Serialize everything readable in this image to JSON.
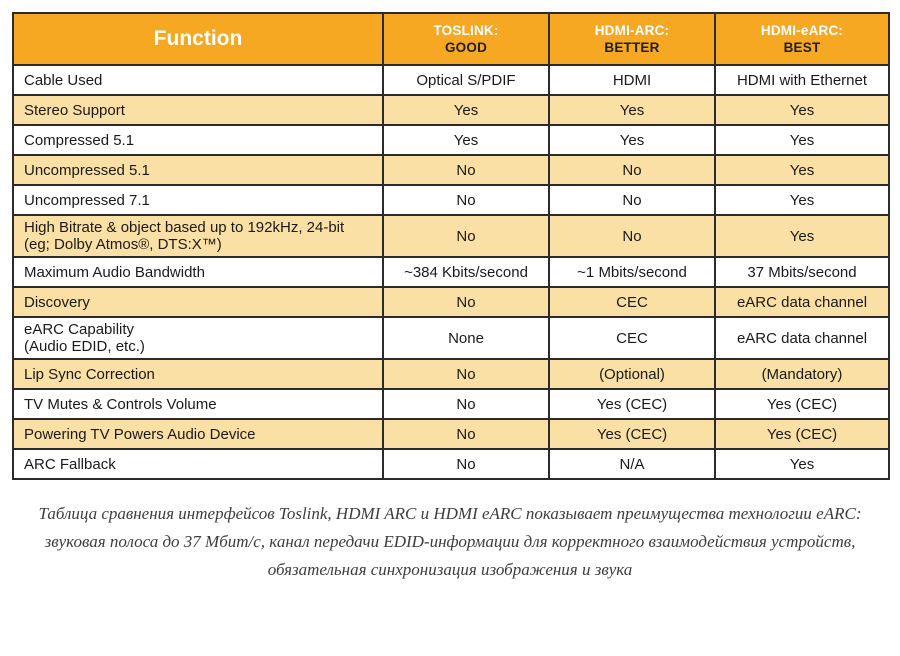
{
  "table": {
    "header": {
      "function_label": "Function",
      "columns": [
        {
          "title": "TOSLINK:",
          "rating": "GOOD"
        },
        {
          "title": "HDMI-ARC:",
          "rating": "BETTER"
        },
        {
          "title": "HDMI-eARC:",
          "rating": "BEST"
        }
      ]
    },
    "rows": [
      {
        "function": "Cable Used",
        "toslink": "Optical S/PDIF",
        "hdmi_arc": "HDMI",
        "hdmi_earc": "HDMI with Ethernet"
      },
      {
        "function": "Stereo Support",
        "toslink": "Yes",
        "hdmi_arc": "Yes",
        "hdmi_earc": "Yes"
      },
      {
        "function": "Compressed 5.1",
        "toslink": "Yes",
        "hdmi_arc": "Yes",
        "hdmi_earc": "Yes"
      },
      {
        "function": "Uncompressed 5.1",
        "toslink": "No",
        "hdmi_arc": "No",
        "hdmi_earc": "Yes"
      },
      {
        "function": "Uncompressed 7.1",
        "toslink": "No",
        "hdmi_arc": "No",
        "hdmi_earc": "Yes"
      },
      {
        "function": "High Bitrate & object based up to 192kHz, 24-bit\n(eg; Dolby Atmos®, DTS:X™)",
        "toslink": "No",
        "hdmi_arc": "No",
        "hdmi_earc": "Yes"
      },
      {
        "function": "Maximum Audio Bandwidth",
        "toslink": "~384 Kbits/second",
        "hdmi_arc": "~1 Mbits/second",
        "hdmi_earc": "37 Mbits/second"
      },
      {
        "function": "Discovery",
        "toslink": "No",
        "hdmi_arc": "CEC",
        "hdmi_earc": "eARC data channel"
      },
      {
        "function": "eARC Capability\n(Audio EDID, etc.)",
        "toslink": "None",
        "hdmi_arc": "CEC",
        "hdmi_earc": "eARC data channel"
      },
      {
        "function": "Lip Sync Correction",
        "toslink": "No",
        "hdmi_arc": "(Optional)",
        "hdmi_earc": "(Mandatory)"
      },
      {
        "function": "TV Mutes & Controls Volume",
        "toslink": "No",
        "hdmi_arc": "Yes (CEC)",
        "hdmi_earc": "Yes (CEC)"
      },
      {
        "function": "Powering TV Powers Audio Device",
        "toslink": "No",
        "hdmi_arc": "Yes (CEC)",
        "hdmi_earc": "Yes (CEC)"
      },
      {
        "function": "ARC Fallback",
        "toslink": "No",
        "hdmi_arc": "N/A",
        "hdmi_earc": "Yes"
      }
    ]
  },
  "caption": {
    "text": "Таблица сравнения интерфейсов Toslink, HDMI ARC и HDMI eARC показывает преимущества технологии eARC: звуковая полоса до 37 Мбит/с, канал передачи EDID-информации для корректного взаимодействия устройств, обязательная синхронизация изображения и звука"
  },
  "colors": {
    "header_bg": "#f7a823",
    "shaded_row_bg": "#fae0a4",
    "border": "#2b2b2b",
    "header_function_text": "#ffffff",
    "header_rating_text": "#1f1f1f",
    "body_text": "#1a1a1a",
    "caption_text": "#3d3d3d"
  }
}
